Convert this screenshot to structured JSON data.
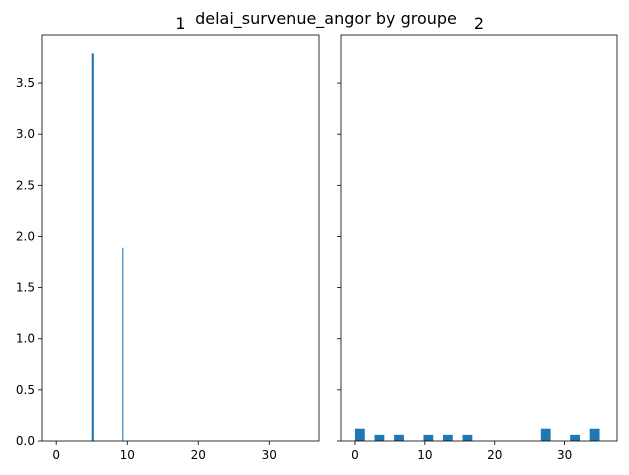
{
  "chart_data": {
    "type": "bar",
    "title": "delai_survenue_angor by groupe",
    "color": "#1f77b4",
    "shared_y": true,
    "ylim": [
      0,
      3.97
    ],
    "yticks": [
      0.0,
      0.5,
      1.0,
      1.5,
      2.0,
      2.5,
      3.0,
      3.5
    ],
    "panels": [
      {
        "title": "1",
        "xlim": [
          -2.0,
          37.0
        ],
        "xticks": [
          0,
          10,
          20,
          30
        ],
        "bins": [
          {
            "start": 5.0,
            "end": 5.3,
            "value": 3.79
          },
          {
            "start": 9.3,
            "end": 9.45,
            "value": 1.89
          }
        ]
      },
      {
        "title": "2",
        "xlim": [
          -2.0,
          37.5
        ],
        "xticks": [
          0,
          10,
          20,
          30
        ],
        "bins": [
          {
            "start": 0.0,
            "end": 1.4,
            "value": 0.12
          },
          {
            "start": 2.8,
            "end": 4.2,
            "value": 0.06
          },
          {
            "start": 5.6,
            "end": 7.0,
            "value": 0.06
          },
          {
            "start": 9.8,
            "end": 11.2,
            "value": 0.06
          },
          {
            "start": 12.6,
            "end": 14.0,
            "value": 0.06
          },
          {
            "start": 15.4,
            "end": 16.8,
            "value": 0.06
          },
          {
            "start": 26.6,
            "end": 28.0,
            "value": 0.12
          },
          {
            "start": 30.8,
            "end": 32.2,
            "value": 0.06
          },
          {
            "start": 33.6,
            "end": 35.0,
            "value": 0.12
          }
        ]
      }
    ]
  }
}
